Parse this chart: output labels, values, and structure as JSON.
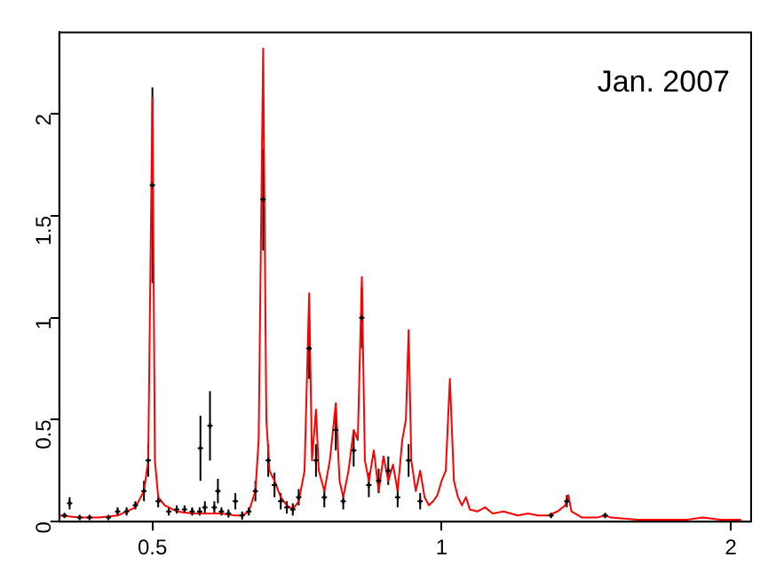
{
  "chart_data": {
    "type": "line",
    "annotations": [
      "Jan. 2007"
    ],
    "log": "x",
    "grid": false,
    "xlim": [
      0.4,
      2.1
    ],
    "ylim": [
      0,
      2.4
    ],
    "xticks": [
      0.5,
      1,
      2
    ],
    "yticks": [
      0,
      0.5,
      1,
      1.5,
      2
    ],
    "series": [
      {
        "type": "scatter",
        "color": "#000000",
        "marker": "cross",
        "x": [
          0.405,
          0.41,
          0.42,
          0.43,
          0.45,
          0.46,
          0.47,
          0.48,
          0.49,
          0.495,
          0.5,
          0.507,
          0.52,
          0.53,
          0.54,
          0.55,
          0.56,
          0.561,
          0.567,
          0.574,
          0.58,
          0.585,
          0.59,
          0.6,
          0.61,
          0.62,
          0.63,
          0.64,
          0.652,
          0.66,
          0.67,
          0.68,
          0.69,
          0.7,
          0.71,
          0.728,
          0.74,
          0.755,
          0.776,
          0.79,
          0.81,
          0.826,
          0.84,
          0.86,
          0.88,
          0.9,
          0.924,
          0.95,
          1.3,
          1.35,
          1.48
        ],
        "values": [
          0.03,
          0.09,
          0.02,
          0.02,
          0.02,
          0.05,
          0.05,
          0.08,
          0.15,
          0.3,
          1.65,
          0.1,
          0.05,
          0.06,
          0.06,
          0.05,
          0.05,
          0.36,
          0.07,
          0.47,
          0.07,
          0.15,
          0.05,
          0.04,
          0.1,
          0.03,
          0.05,
          0.15,
          1.58,
          0.3,
          0.18,
          0.1,
          0.07,
          0.06,
          0.12,
          0.85,
          0.3,
          0.12,
          0.45,
          0.1,
          0.35,
          1.0,
          0.18,
          0.2,
          0.25,
          0.12,
          0.3,
          0.1,
          0.03,
          0.1,
          0.03
        ],
        "errors": [
          0.01,
          0.03,
          0.01,
          0.01,
          0.01,
          0.02,
          0.02,
          0.02,
          0.05,
          0.08,
          0.48,
          0.03,
          0.02,
          0.02,
          0.02,
          0.02,
          0.02,
          0.16,
          0.03,
          0.17,
          0.03,
          0.06,
          0.02,
          0.02,
          0.04,
          0.02,
          0.02,
          0.05,
          0.25,
          0.08,
          0.06,
          0.04,
          0.03,
          0.03,
          0.04,
          0.15,
          0.08,
          0.05,
          0.1,
          0.04,
          0.08,
          0.15,
          0.06,
          0.06,
          0.07,
          0.05,
          0.08,
          0.04,
          0.01,
          0.03,
          0.01
        ]
      },
      {
        "color": "#ff0000",
        "marker": "none",
        "x": [
          0.4,
          0.42,
          0.44,
          0.46,
          0.48,
          0.49,
          0.495,
          0.5,
          0.503,
          0.507,
          0.515,
          0.53,
          0.55,
          0.57,
          0.59,
          0.61,
          0.62,
          0.63,
          0.64,
          0.645,
          0.652,
          0.657,
          0.662,
          0.67,
          0.68,
          0.69,
          0.7,
          0.71,
          0.72,
          0.728,
          0.733,
          0.74,
          0.745,
          0.755,
          0.765,
          0.776,
          0.783,
          0.79,
          0.8,
          0.81,
          0.818,
          0.826,
          0.832,
          0.84,
          0.85,
          0.86,
          0.87,
          0.88,
          0.89,
          0.9,
          0.91,
          0.918,
          0.924,
          0.93,
          0.94,
          0.95,
          0.96,
          0.97,
          0.98,
          0.99,
          1.0,
          1.01,
          1.02,
          1.03,
          1.04,
          1.05,
          1.06,
          1.07,
          1.09,
          1.11,
          1.13,
          1.16,
          1.2,
          1.23,
          1.26,
          1.29,
          1.32,
          1.345,
          1.355,
          1.365,
          1.4,
          1.45,
          1.48,
          1.5,
          1.6,
          1.7,
          1.8,
          1.87,
          1.95,
          2.05
        ],
        "values": [
          0.03,
          0.02,
          0.02,
          0.03,
          0.07,
          0.15,
          0.3,
          2.08,
          0.3,
          0.12,
          0.08,
          0.05,
          0.04,
          0.04,
          0.04,
          0.03,
          0.03,
          0.05,
          0.15,
          0.4,
          2.32,
          0.5,
          0.25,
          0.2,
          0.12,
          0.08,
          0.06,
          0.1,
          0.25,
          1.12,
          0.3,
          0.55,
          0.25,
          0.15,
          0.3,
          0.58,
          0.2,
          0.12,
          0.25,
          0.45,
          0.4,
          1.2,
          0.3,
          0.2,
          0.35,
          0.15,
          0.32,
          0.2,
          0.28,
          0.15,
          0.4,
          0.5,
          0.94,
          0.3,
          0.15,
          0.25,
          0.12,
          0.08,
          0.1,
          0.13,
          0.2,
          0.25,
          0.7,
          0.2,
          0.12,
          0.08,
          0.12,
          0.06,
          0.05,
          0.07,
          0.04,
          0.05,
          0.03,
          0.04,
          0.03,
          0.03,
          0.05,
          0.08,
          0.13,
          0.05,
          0.02,
          0.02,
          0.03,
          0.02,
          0.01,
          0.01,
          0.01,
          0.02,
          0.01,
          0.01
        ]
      }
    ]
  }
}
